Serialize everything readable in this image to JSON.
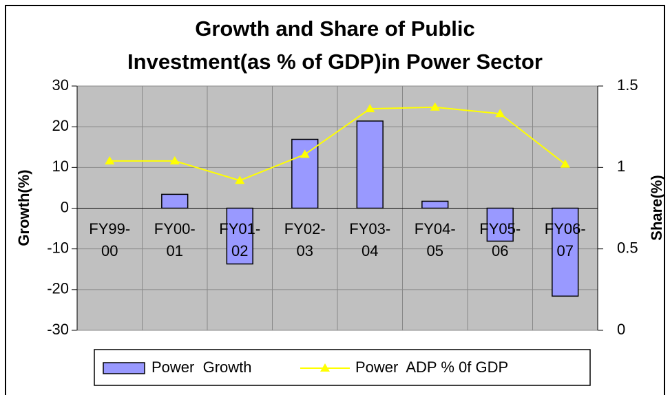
{
  "chart_data": {
    "type": "bar_line",
    "title": [
      "Growth and Share of Public",
      "Investment(as % of GDP)in Power Sector"
    ],
    "ylabel": "Growth(%)",
    "y2label": "Share(%)",
    "categories": [
      "FY99-00",
      "FY00-01",
      "FY01-02",
      "FY02-03",
      "FY03-04",
      "FY04-05",
      "FY05-06",
      "FY06-07"
    ],
    "series": [
      {
        "name": "Power  Growth",
        "type": "bar",
        "color": "#9999ff",
        "values": [
          0,
          3.4,
          -13.7,
          16.9,
          21.4,
          1.7,
          -8.1,
          -21.6
        ]
      },
      {
        "name": "Power  ADP % 0f GDP",
        "type": "line",
        "axis": "y2",
        "color": "#ffff00",
        "values": [
          1.04,
          1.04,
          0.92,
          1.08,
          1.36,
          1.37,
          1.33,
          1.02
        ]
      }
    ],
    "ylim": [
      -30,
      30
    ],
    "yticks": [
      -30,
      -20,
      -10,
      0,
      10,
      20,
      30
    ],
    "y2lim": [
      0,
      1.5
    ],
    "y2ticks": [
      0,
      0.5,
      1,
      1.5
    ],
    "grid": true,
    "legend": "bottom"
  }
}
